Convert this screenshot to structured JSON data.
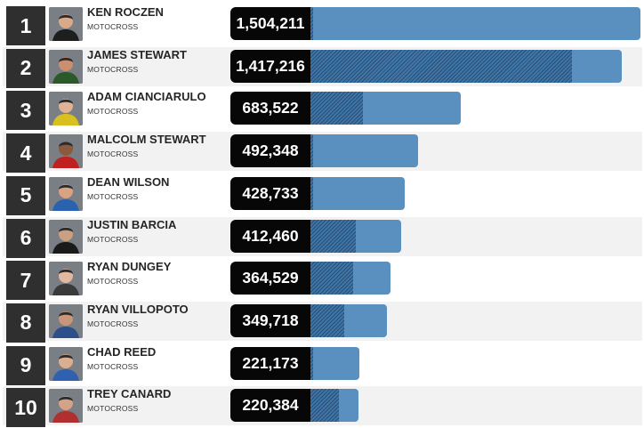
{
  "chart_data": {
    "type": "bar",
    "orientation": "horizontal",
    "xlim": [
      0,
      1504211
    ],
    "colors": {
      "bar": "#5990bf",
      "hatch": "#3f76a6",
      "value_box": "#070707",
      "rank_box": "#2f2f2f"
    },
    "rows": [
      {
        "rank": "1",
        "name": "KEN ROCZEN",
        "category": "MOTOCROSS",
        "value": 1504211,
        "label": "1,504,211",
        "hatched": 0,
        "avatar": "avatar-roczen-icon"
      },
      {
        "rank": "2",
        "name": "JAMES STEWART",
        "category": "MOTOCROSS",
        "value": 1417216,
        "label": "1,417,216",
        "hatched": 1190000,
        "avatar": "avatar-jstewart-icon"
      },
      {
        "rank": "3",
        "name": "ADAM CIANCIARULO",
        "category": "MOTOCROSS",
        "value": 683522,
        "label": "683,522",
        "hatched": 240000,
        "avatar": "avatar-cianciarulo-icon"
      },
      {
        "rank": "4",
        "name": "MALCOLM STEWART",
        "category": "MOTOCROSS",
        "value": 492348,
        "label": "492,348",
        "hatched": 0,
        "avatar": "avatar-mstewart-icon"
      },
      {
        "rank": "5",
        "name": "DEAN WILSON",
        "category": "MOTOCROSS",
        "value": 428733,
        "label": "428,733",
        "hatched": 0,
        "avatar": "avatar-wilson-icon"
      },
      {
        "rank": "6",
        "name": "JUSTIN BARCIA",
        "category": "MOTOCROSS",
        "value": 412460,
        "label": "412,460",
        "hatched": 208000,
        "avatar": "avatar-barcia-icon"
      },
      {
        "rank": "7",
        "name": "RYAN DUNGEY",
        "category": "MOTOCROSS",
        "value": 364529,
        "label": "364,529",
        "hatched": 195000,
        "avatar": "avatar-dungey-icon"
      },
      {
        "rank": "8",
        "name": "RYAN VILLOPOTO",
        "category": "MOTOCROSS",
        "value": 349718,
        "label": "349,718",
        "hatched": 155000,
        "avatar": "avatar-villopoto-icon"
      },
      {
        "rank": "9",
        "name": "CHAD REED",
        "category": "MOTOCROSS",
        "value": 221173,
        "label": "221,173",
        "hatched": 0,
        "avatar": "avatar-reed-icon"
      },
      {
        "rank": "10",
        "name": "TREY CANARD",
        "category": "MOTOCROSS",
        "value": 220384,
        "label": "220,384",
        "hatched": 130000,
        "avatar": "avatar-canard-icon"
      }
    ]
  }
}
